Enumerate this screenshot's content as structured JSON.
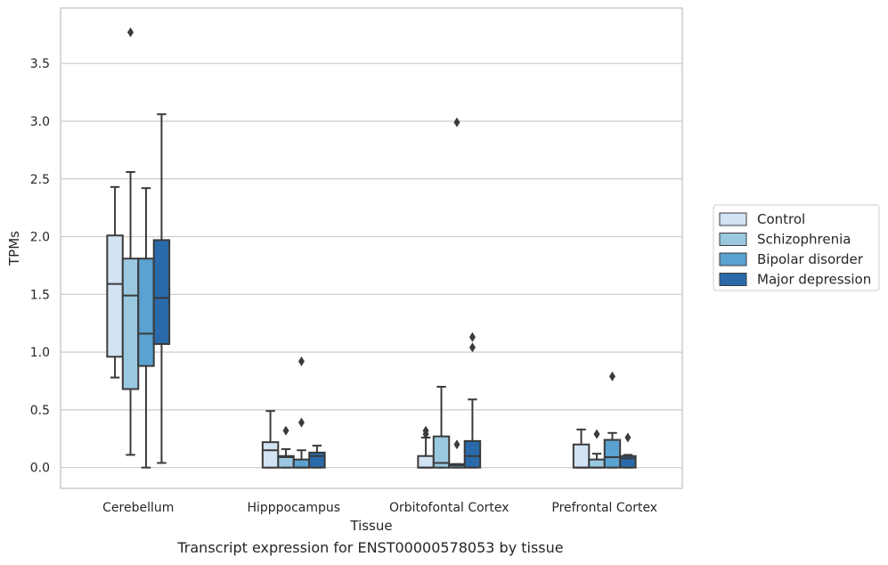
{
  "caption": "Transcript expression for ENST00000578053 by tissue",
  "chart_data": {
    "type": "box",
    "xlabel": "Tissue",
    "ylabel": "TPMs",
    "ylim": [
      -0.18,
      3.98
    ],
    "yticks": [
      0.0,
      0.5,
      1.0,
      1.5,
      2.0,
      2.5,
      3.0,
      3.5
    ],
    "ytick_labels": [
      "0.0",
      "0.5",
      "1.0",
      "1.5",
      "2.0",
      "2.5",
      "3.0",
      "3.5"
    ],
    "grid": true,
    "legend_position": "right",
    "categories": [
      "Cerebellum",
      "Hipppocampus",
      "Orbitofontal Cortex",
      "Prefrontal Cortex"
    ],
    "series": [
      {
        "name": "Control",
        "color": "#d2e3f3",
        "boxes": [
          {
            "whislo": 0.78,
            "q1": 0.96,
            "med": 1.59,
            "q3": 2.01,
            "whishi": 2.43,
            "fliers": []
          },
          {
            "whislo": 0.0,
            "q1": 0.0,
            "med": 0.15,
            "q3": 0.22,
            "whishi": 0.49,
            "fliers": []
          },
          {
            "whislo": 0.0,
            "q1": 0.0,
            "med": 0.0,
            "q3": 0.1,
            "whishi": 0.26,
            "fliers": [
              0.29,
              0.32
            ]
          },
          {
            "whislo": 0.0,
            "q1": 0.0,
            "med": 0.0,
            "q3": 0.2,
            "whishi": 0.33,
            "fliers": []
          }
        ]
      },
      {
        "name": "Schizophrenia",
        "color": "#9ac8e0",
        "boxes": [
          {
            "whislo": 0.11,
            "q1": 0.68,
            "med": 1.49,
            "q3": 1.81,
            "whishi": 2.56,
            "fliers": [
              3.77
            ]
          },
          {
            "whislo": 0.0,
            "q1": 0.0,
            "med": 0.09,
            "q3": 0.1,
            "whishi": 0.16,
            "fliers": [
              0.32
            ]
          },
          {
            "whislo": 0.0,
            "q1": 0.0,
            "med": 0.04,
            "q3": 0.27,
            "whishi": 0.7,
            "fliers": []
          },
          {
            "whislo": 0.0,
            "q1": 0.0,
            "med": 0.0,
            "q3": 0.07,
            "whishi": 0.12,
            "fliers": [
              0.29
            ]
          }
        ]
      },
      {
        "name": "Bipolar disorder",
        "color": "#5aa2cf",
        "boxes": [
          {
            "whislo": 0.0,
            "q1": 0.88,
            "med": 1.16,
            "q3": 1.81,
            "whishi": 2.42,
            "fliers": []
          },
          {
            "whislo": 0.0,
            "q1": 0.0,
            "med": 0.0,
            "q3": 0.07,
            "whishi": 0.15,
            "fliers": [
              0.39,
              0.92
            ]
          },
          {
            "whislo": 0.0,
            "q1": 0.0,
            "med": 0.02,
            "q3": 0.03,
            "whishi": 0.03,
            "fliers": [
              0.2,
              2.99
            ]
          },
          {
            "whislo": 0.0,
            "q1": 0.0,
            "med": 0.09,
            "q3": 0.24,
            "whishi": 0.3,
            "fliers": [
              0.79
            ]
          }
        ]
      },
      {
        "name": "Major depression",
        "color": "#2a6aab",
        "boxes": [
          {
            "whislo": 0.04,
            "q1": 1.07,
            "med": 1.47,
            "q3": 1.97,
            "whishi": 3.06,
            "fliers": []
          },
          {
            "whislo": 0.0,
            "q1": 0.0,
            "med": 0.1,
            "q3": 0.13,
            "whishi": 0.19,
            "fliers": []
          },
          {
            "whislo": 0.0,
            "q1": 0.0,
            "med": 0.1,
            "q3": 0.23,
            "whishi": 0.59,
            "fliers": [
              1.04,
              1.13
            ]
          },
          {
            "whislo": 0.0,
            "q1": 0.0,
            "med": 0.08,
            "q3": 0.1,
            "whishi": 0.11,
            "fliers": [
              0.26
            ]
          }
        ]
      }
    ]
  }
}
